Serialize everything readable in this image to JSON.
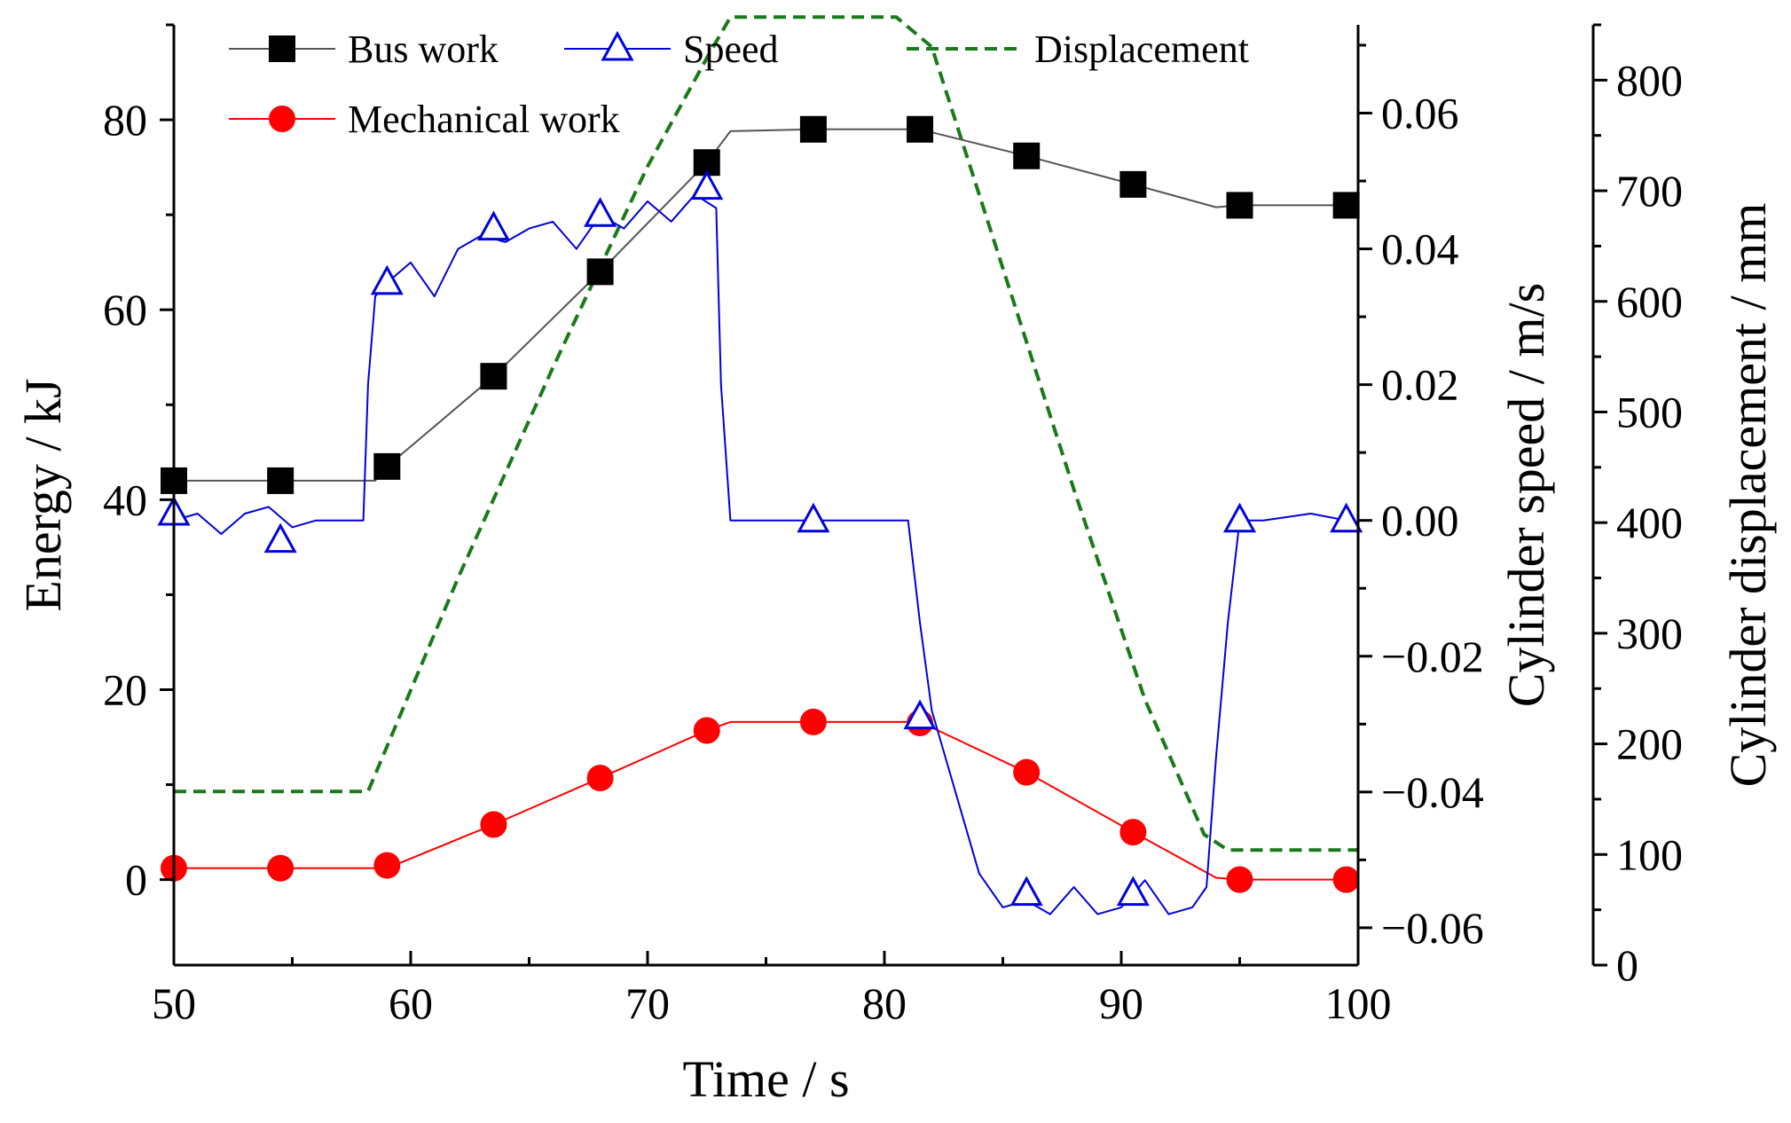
{
  "chart_data": {
    "type": "line",
    "title": "",
    "xlabel": "Time / s",
    "xlim": [
      50,
      100
    ],
    "x_ticks": [
      "50",
      "60",
      "70",
      "80",
      "90",
      "100"
    ],
    "axes": {
      "left": {
        "label": "Energy / kJ",
        "ylim": [
          -9,
          90
        ],
        "ticks": [
          "0",
          "20",
          "40",
          "60",
          "80"
        ]
      },
      "right1": {
        "label": "Cylinder speed / m/s",
        "ylim": [
          -0.0655,
          0.073
        ],
        "ticks": [
          "0.06",
          "0.04",
          "0.02",
          "0.00",
          "−0.02",
          "−0.04",
          "−0.06"
        ]
      },
      "right2": {
        "label": "Cylinder displacement / mm",
        "ylim": [
          0,
          850
        ],
        "ticks": [
          "800",
          "700",
          "600",
          "500",
          "400",
          "300",
          "200",
          "100",
          "0"
        ]
      }
    },
    "legend": {
      "placement": "top",
      "entries": [
        {
          "name": "Bus work",
          "color": "#555555",
          "marker": "square"
        },
        {
          "name": "Speed",
          "color": "#0000dd",
          "marker": "triangle"
        },
        {
          "name": "Displacement",
          "color": "#1a7a1a",
          "marker": "none"
        },
        {
          "name": "Mechanical work",
          "color": "#ff0000",
          "marker": "circle"
        }
      ]
    },
    "series": [
      {
        "name": "Bus work",
        "axis": "left",
        "color": "#555555",
        "marker_color": "#000000",
        "marker": "square",
        "x": [
          50,
          58.5,
          59,
          63.5,
          68,
          72.5,
          73.5,
          77,
          81.5,
          86,
          90.5,
          94,
          95,
          99.5
        ],
        "y": [
          42,
          42,
          43.5,
          53,
          64,
          75.5,
          78.8,
          79,
          79,
          76.2,
          73.2,
          70.8,
          71,
          71
        ],
        "markers": [
          [
            50,
            42
          ],
          [
            54.5,
            42
          ],
          [
            59,
            43.5
          ],
          [
            63.5,
            53
          ],
          [
            68,
            64
          ],
          [
            72.5,
            75.5
          ],
          [
            77,
            79
          ],
          [
            81.5,
            79
          ],
          [
            86,
            76.2
          ],
          [
            90.5,
            73.2
          ],
          [
            95,
            71
          ],
          [
            99.5,
            71
          ]
        ]
      },
      {
        "name": "Mechanical work",
        "axis": "left",
        "color": "#ff0000",
        "marker_color": "#ff0000",
        "marker": "circle",
        "x": [
          50,
          59,
          63.5,
          68,
          72.5,
          73.5,
          81.5,
          86,
          90.5,
          94,
          95,
          99.5
        ],
        "y": [
          1.2,
          1.2,
          5.8,
          10.7,
          15.7,
          16.6,
          16.6,
          11.3,
          5,
          0.2,
          0,
          0
        ],
        "markers": [
          [
            50,
            1.2
          ],
          [
            54.5,
            1.2
          ],
          [
            59,
            1.5
          ],
          [
            63.5,
            5.8
          ],
          [
            68,
            10.7
          ],
          [
            72.5,
            15.7
          ],
          [
            77,
            16.6
          ],
          [
            81.5,
            16.5
          ],
          [
            86,
            11.3
          ],
          [
            90.5,
            5
          ],
          [
            95,
            0
          ],
          [
            99.5,
            0
          ]
        ]
      },
      {
        "name": "Speed",
        "axis": "right1",
        "color": "#0000dd",
        "marker_color": "#0000dd",
        "marker": "triangle",
        "x": [
          50,
          51,
          52,
          53,
          54,
          55,
          56,
          57,
          58,
          58.2,
          58.5,
          59,
          60,
          61,
          62,
          63,
          64,
          65,
          66,
          67,
          68,
          69,
          70,
          71,
          72,
          72.9,
          73.1,
          73.5,
          75,
          77,
          80,
          81,
          81.5,
          82,
          83,
          84,
          85,
          86,
          87,
          88,
          89,
          90,
          91,
          92,
          93,
          93.6,
          94,
          94.5,
          95,
          96,
          98,
          99.5
        ],
        "y": [
          0.0,
          0.001,
          -0.002,
          0.001,
          0.002,
          -0.001,
          0.0,
          0.0,
          0.0,
          0.02,
          0.033,
          0.035,
          0.038,
          0.033,
          0.04,
          0.042,
          0.041,
          0.043,
          0.044,
          0.04,
          0.045,
          0.043,
          0.047,
          0.044,
          0.048,
          0.046,
          0.02,
          0.0,
          0.0,
          0.0,
          0.0,
          0.0,
          -0.015,
          -0.028,
          -0.04,
          -0.052,
          -0.057,
          -0.056,
          -0.058,
          -0.054,
          -0.058,
          -0.057,
          -0.053,
          -0.058,
          -0.057,
          -0.054,
          -0.035,
          -0.015,
          0.0,
          0.0,
          0.001,
          0.0
        ],
        "markers": [
          [
            50,
            0.001
          ],
          [
            54.5,
            -0.003
          ],
          [
            59,
            0.035
          ],
          [
            63.5,
            0.043
          ],
          [
            68,
            0.045
          ],
          [
            72.5,
            0.049
          ],
          [
            77,
            0.0
          ],
          [
            81.5,
            -0.029
          ],
          [
            86,
            -0.055
          ],
          [
            90.5,
            -0.055
          ],
          [
            95,
            0.0
          ],
          [
            99.5,
            0.0
          ]
        ]
      },
      {
        "name": "Displacement",
        "axis": "right2",
        "color": "#1a7a1a",
        "marker": "none",
        "dashed": true,
        "x": [
          50,
          58.2,
          62,
          66,
          70,
          72.5,
          73.5,
          76,
          80.5,
          82,
          85,
          88,
          91,
          93.5,
          94.5,
          100
        ],
        "y": [
          157,
          157,
          350,
          540,
          722,
          820,
          857,
          857,
          857,
          830,
          630,
          430,
          240,
          118,
          104,
          104
        ]
      }
    ]
  }
}
